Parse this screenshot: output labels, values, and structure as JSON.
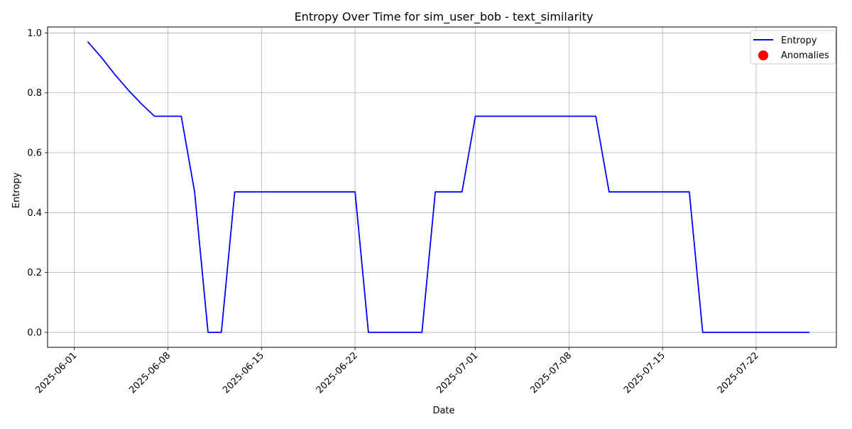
{
  "chart_data": {
    "type": "line",
    "title": "Entropy Over Time for sim_user_bob - text_similarity",
    "xlabel": "Date",
    "ylabel": "Entropy",
    "xlim": [
      "2025-05-30",
      "2025-07-28"
    ],
    "ylim": [
      -0.05,
      1.02
    ],
    "grid": true,
    "legend_position": "top-right",
    "x_ticks": [
      "2025-06-01",
      "2025-06-08",
      "2025-06-15",
      "2025-06-22",
      "2025-07-01",
      "2025-07-08",
      "2025-07-15",
      "2025-07-22"
    ],
    "y_ticks": [
      0.0,
      0.2,
      0.4,
      0.6,
      0.8,
      1.0
    ],
    "series": [
      {
        "name": "Entropy",
        "color": "#0000ff",
        "kind": "line",
        "points": [
          {
            "x": "2025-06-02",
            "y": 0.971
          },
          {
            "x": "2025-06-03",
            "y": 0.92
          },
          {
            "x": "2025-06-04",
            "y": 0.863
          },
          {
            "x": "2025-06-05",
            "y": 0.811
          },
          {
            "x": "2025-06-06",
            "y": 0.764
          },
          {
            "x": "2025-06-07",
            "y": 0.722
          },
          {
            "x": "2025-06-08",
            "y": 0.722
          },
          {
            "x": "2025-06-09",
            "y": 0.722
          },
          {
            "x": "2025-06-10",
            "y": 0.469
          },
          {
            "x": "2025-06-11",
            "y": 0.0
          },
          {
            "x": "2025-06-12",
            "y": 0.0
          },
          {
            "x": "2025-06-13",
            "y": 0.469
          },
          {
            "x": "2025-06-14",
            "y": 0.469
          },
          {
            "x": "2025-06-22",
            "y": 0.469
          },
          {
            "x": "2025-06-23",
            "y": 0.0
          },
          {
            "x": "2025-06-27",
            "y": 0.0
          },
          {
            "x": "2025-06-28",
            "y": 0.469
          },
          {
            "x": "2025-06-30",
            "y": 0.469
          },
          {
            "x": "2025-07-01",
            "y": 0.722
          },
          {
            "x": "2025-07-10",
            "y": 0.722
          },
          {
            "x": "2025-07-11",
            "y": 0.469
          },
          {
            "x": "2025-07-17",
            "y": 0.469
          },
          {
            "x": "2025-07-18",
            "y": 0.0
          },
          {
            "x": "2025-07-26",
            "y": 0.0
          }
        ]
      },
      {
        "name": "Anomalies",
        "color": "#ff0000",
        "kind": "scatter",
        "points": []
      }
    ]
  }
}
